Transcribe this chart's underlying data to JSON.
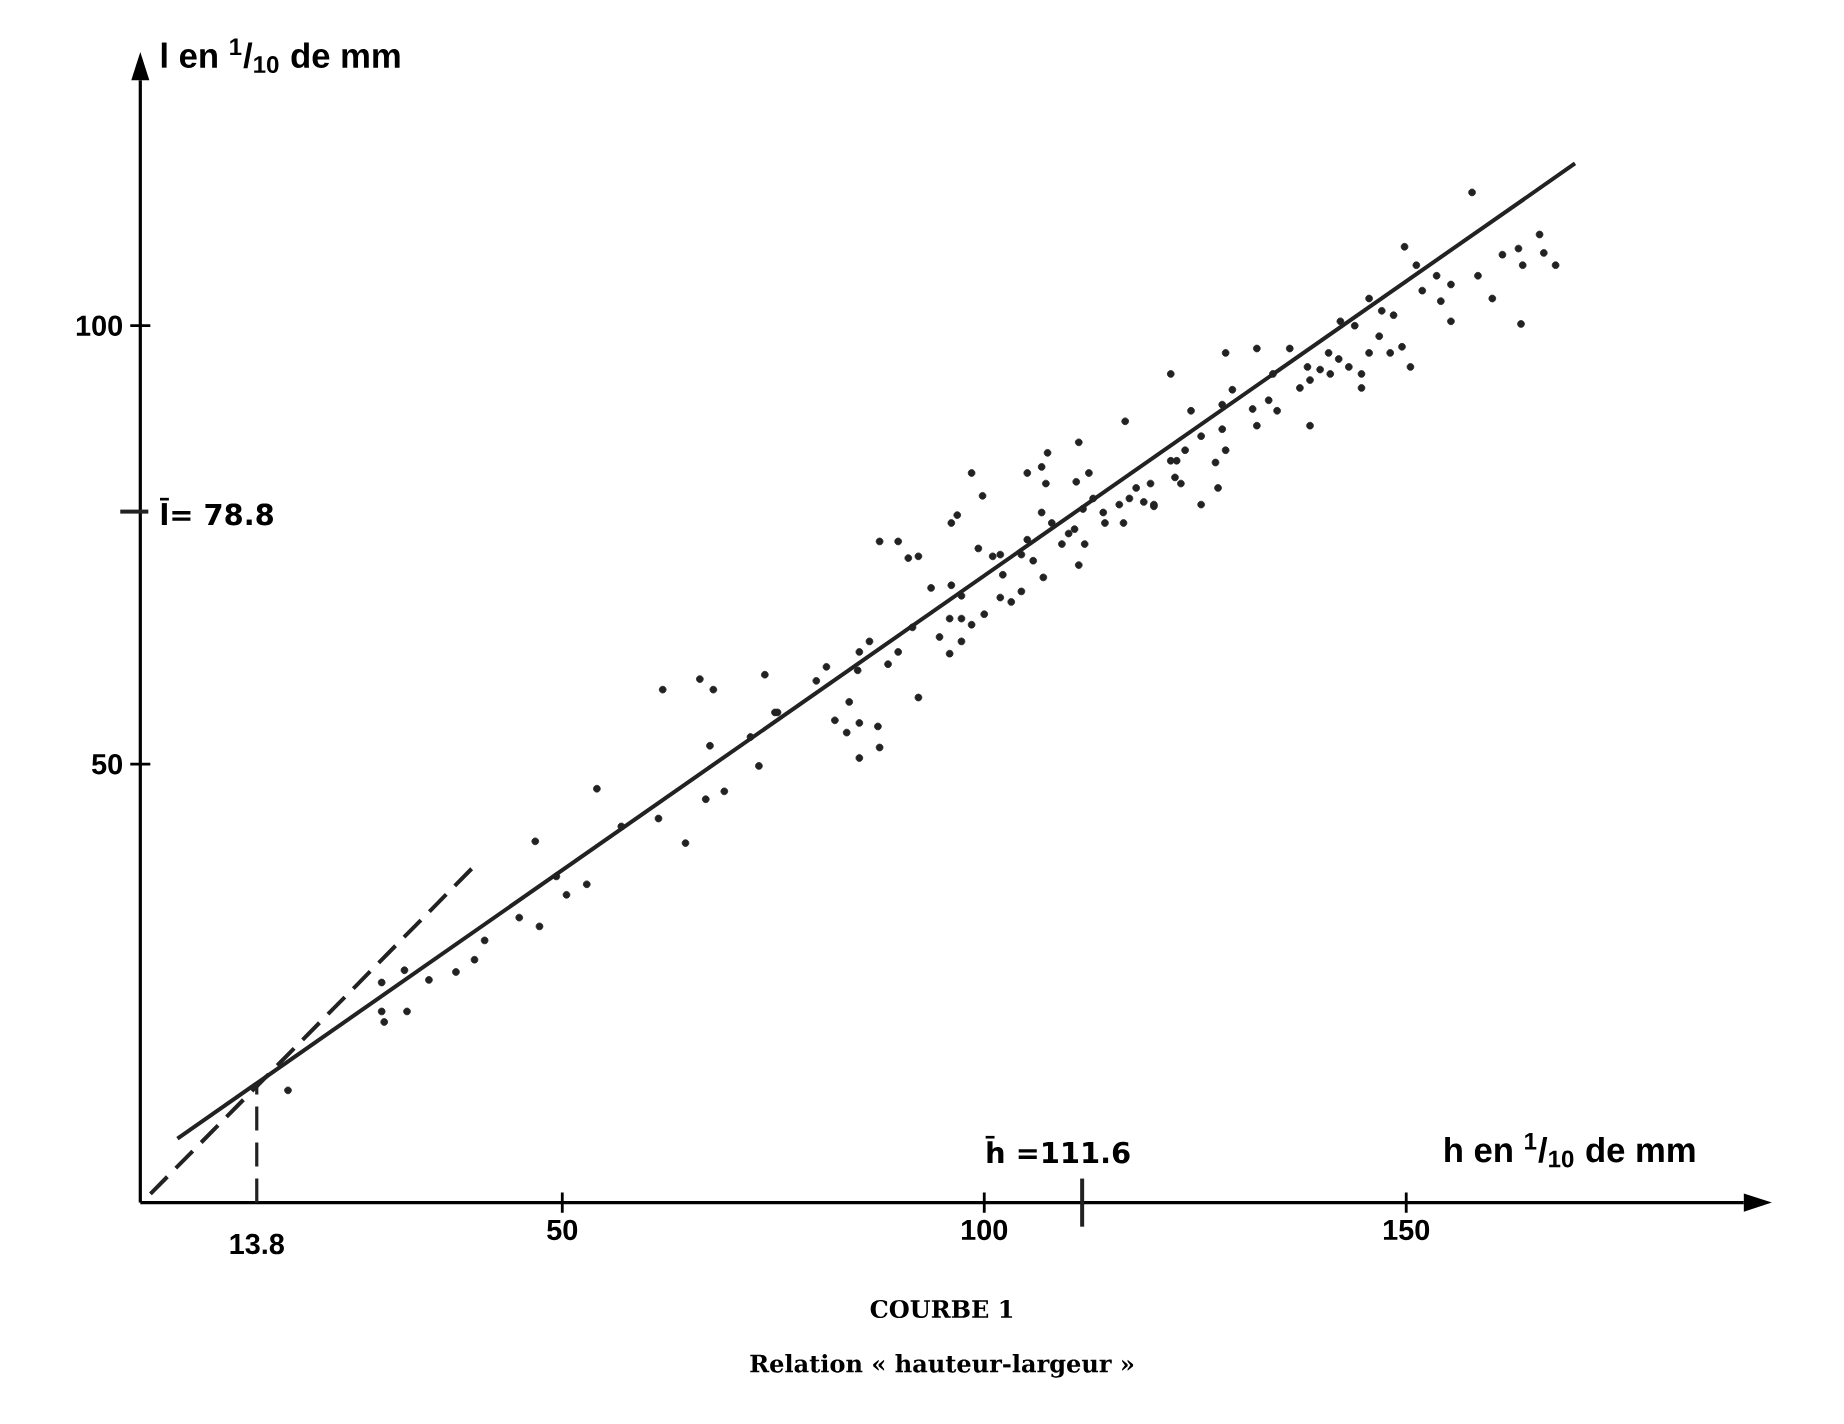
{
  "chart_data": {
    "type": "scatter",
    "title": "COURBE 1",
    "subtitle": "Relation « hauteur-largeur »",
    "xlabel": "h en $^{1}$/$_{10}$ de mm",
    "ylabel": "l en $^{1}$/$_{10}$ de mm",
    "xlim": [
      0,
      190
    ],
    "ylim": [
      0,
      128
    ],
    "xticks": [
      50,
      100,
      150
    ],
    "yticks": [
      50,
      100
    ],
    "grid": false,
    "ref_lines": [
      {
        "axis": "x",
        "value": 13.8,
        "label": "13.8",
        "line_style": "dashed",
        "color": "#222222"
      },
      {
        "axis": "x",
        "value": 111.6,
        "label": "h̄ =111.6",
        "color": "#222222"
      },
      {
        "axis": "y",
        "value": 78.8,
        "label": "l̄= 78.8",
        "color": "#222222"
      }
    ],
    "series": [
      {
        "type": "scatter",
        "marker": "circle",
        "color": "#222222",
        "x": [
          17.5,
          28.6,
          31.3,
          28.6,
          28.9,
          31.6,
          34.2,
          37.4,
          39.6,
          40.8,
          44.9,
          47.3,
          46.8,
          50.5,
          52.9,
          49.3,
          54.1,
          57.0,
          61.4,
          64.6,
          61.9,
          66.3,
          67.9,
          74.0,
          67.5,
          67.0,
          69.2,
          72.3,
          73.3,
          75.2,
          80.1,
          81.3,
          75.5,
          85.2,
          86.4,
          85.0,
          89.8,
          88.6,
          84.0,
          82.3,
          83.7,
          85.2,
          87.4,
          87.6,
          85.2,
          92.2,
          91.5,
          94.7,
          87.6,
          89.8,
          91.0,
          92.2,
          93.7,
          96.1,
          97.3,
          95.9,
          97.3,
          98.5,
          95.9,
          97.3,
          100.0,
          96.1,
          96.8,
          98.5,
          99.8,
          99.3,
          101.0,
          101.9,
          102.2,
          101.9,
          103.2,
          104.4,
          105.1,
          105.8,
          104.4,
          107.0,
          105.1,
          106.8,
          107.5,
          107.3,
          106.8,
          108.0,
          109.2,
          110.0,
          110.7,
          111.2,
          110.9,
          112.4,
          111.7,
          112.9,
          111.9,
          111.2,
          114.1,
          114.3,
          116.5,
          116.7,
          117.2,
          118.9,
          119.7,
          120.1,
          122.1,
          122.6,
          123.8,
          122.1,
          157.8,
          149.8,
          151.2,
          153.6,
          155.3,
          151.9,
          154.1,
          155.3,
          158.5,
          160.2,
          161.4,
          163.3,
          163.8,
          165.8,
          166.3,
          167.7,
          163.6,
          145.6,
          147.1,
          148.5,
          146.8,
          149.5,
          148.1,
          150.5,
          145.6,
          143.9,
          144.7,
          142.2,
          142.0,
          143.2,
          144.7,
          140.8,
          139.8,
          141.0,
          138.3,
          138.6,
          137.4,
          136.2,
          134.2,
          132.3,
          128.6,
          133.7,
          134.7,
          131.8,
          132.3,
          129.4,
          128.2,
          138.6,
          124.5,
          125.7,
          128.2,
          128.6,
          127.4,
          127.7,
          125.7,
          122.8,
          123.3,
          118.0,
          120.1,
          116.0
        ],
        "values": [
          12.8,
          25.1,
          26.5,
          21.8,
          20.6,
          21.8,
          25.4,
          26.3,
          27.7,
          29.9,
          32.5,
          31.5,
          41.2,
          35.1,
          36.3,
          37.2,
          47.2,
          42.9,
          43.8,
          41.0,
          58.5,
          59.7,
          58.5,
          60.2,
          52.1,
          46.0,
          46.9,
          53.1,
          49.8,
          55.9,
          59.5,
          61.1,
          55.9,
          62.8,
          64.0,
          60.7,
          62.8,
          61.4,
          57.1,
          55.0,
          53.6,
          54.7,
          54.3,
          51.9,
          50.7,
          57.6,
          65.6,
          64.5,
          75.4,
          75.4,
          73.5,
          73.7,
          70.1,
          70.4,
          69.2,
          66.6,
          66.6,
          65.9,
          62.6,
          64.0,
          67.1,
          77.5,
          78.4,
          83.2,
          80.6,
          74.6,
          73.7,
          73.9,
          71.6,
          69.0,
          68.5,
          69.7,
          75.6,
          73.2,
          73.9,
          71.3,
          83.2,
          83.9,
          85.5,
          82.0,
          78.7,
          77.5,
          75.1,
          76.3,
          76.8,
          86.7,
          82.2,
          83.2,
          79.1,
          80.3,
          75.1,
          72.7,
          78.7,
          77.5,
          77.5,
          89.1,
          80.3,
          79.9,
          82.0,
          79.4,
          84.6,
          82.7,
          85.8,
          94.5,
          115.2,
          109.0,
          106.9,
          105.7,
          104.7,
          104.0,
          102.8,
          100.5,
          105.7,
          103.1,
          108.1,
          108.8,
          106.9,
          110.4,
          108.3,
          106.9,
          100.2,
          103.1,
          101.7,
          101.2,
          98.8,
          97.6,
          96.9,
          95.3,
          96.9,
          100.0,
          94.5,
          100.5,
          96.2,
          95.3,
          92.9,
          96.9,
          95.0,
          94.5,
          95.3,
          93.8,
          92.9,
          97.4,
          94.5,
          97.4,
          96.9,
          91.5,
          90.3,
          90.5,
          88.6,
          92.7,
          91.0,
          88.6,
          90.3,
          87.4,
          88.2,
          85.8,
          84.4,
          81.5,
          79.6,
          84.6,
          82.0,
          81.5,
          79.6,
          79.6
        ]
      },
      {
        "type": "line",
        "line_style": "solid",
        "color": "#222222",
        "x": [
          4.4,
          170
        ],
        "values": [
          7.3,
          118.5
        ]
      },
      {
        "type": "line",
        "line_style": "dashed",
        "color": "#222222",
        "x": [
          1.2,
          39.6
        ],
        "values": [
          1.0,
          38.4
        ]
      }
    ]
  }
}
